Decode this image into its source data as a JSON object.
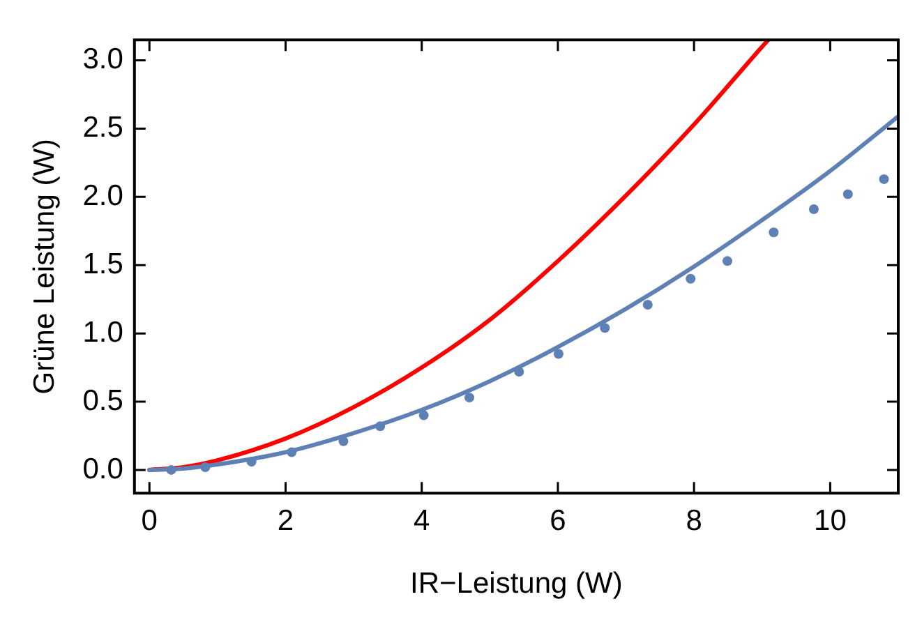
{
  "chart_data": {
    "type": "line",
    "xlabel": "IR−Leistung (W)",
    "ylabel": "Grüne Leistung (W)",
    "xlim": [
      -0.22,
      11
    ],
    "ylim": [
      -0.17,
      3.15
    ],
    "xticks": [
      0,
      2,
      4,
      6,
      8,
      10
    ],
    "yticks": [
      {
        "value": 0,
        "label": "0.0"
      },
      {
        "value": 0.5,
        "label": "0.5"
      },
      {
        "value": 1,
        "label": "1.0"
      },
      {
        "value": 1.5,
        "label": "1.5"
      },
      {
        "value": 2,
        "label": "2.0"
      },
      {
        "value": 2.5,
        "label": "2.5"
      },
      {
        "value": 3,
        "label": "3.0"
      }
    ],
    "grid": false,
    "legend": false,
    "series": [
      {
        "color": "#ff0000",
        "marker": "none",
        "line_style": "solid",
        "x": [
          0,
          0.5,
          1,
          2,
          3,
          4,
          5,
          6,
          7,
          8,
          9,
          9.09
        ],
        "values": [
          0,
          0.02,
          0.07,
          0.23,
          0.46,
          0.75,
          1.1,
          1.53,
          2.01,
          2.53,
          3.1,
          3.15
        ]
      },
      {
        "color": "#5e81b5",
        "marker": "none",
        "line_style": "solid",
        "x": [
          0,
          0.5,
          1,
          2,
          3,
          4,
          5,
          6,
          7,
          8,
          9,
          10,
          11
        ],
        "values": [
          0,
          0.01,
          0.04,
          0.13,
          0.27,
          0.44,
          0.65,
          0.9,
          1.18,
          1.49,
          1.83,
          2.19,
          2.59
        ]
      },
      {
        "type": "scatter",
        "color": "#5e81b5",
        "marker": "circle",
        "x": [
          0.32,
          0.82,
          1.5,
          2.09,
          2.85,
          3.39,
          4.03,
          4.7,
          5.43,
          6.01,
          6.69,
          7.32,
          7.95,
          8.49,
          9.17,
          9.76,
          10.26,
          10.79
        ],
        "values": [
          0,
          0.02,
          0.06,
          0.13,
          0.21,
          0.32,
          0.4,
          0.53,
          0.72,
          0.85,
          1.04,
          1.21,
          1.4,
          1.53,
          1.74,
          1.91,
          2.02,
          2.13
        ]
      }
    ]
  }
}
